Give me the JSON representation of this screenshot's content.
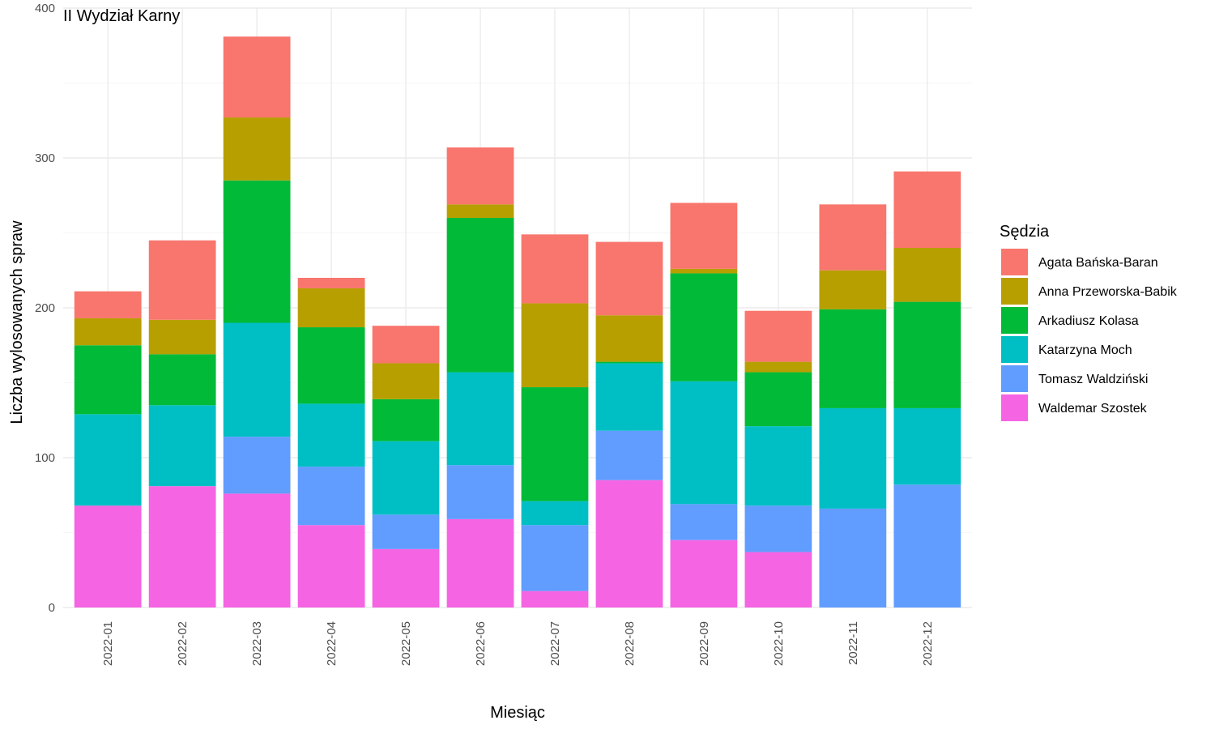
{
  "chart_data": {
    "type": "bar",
    "stacked": true,
    "title": "II Wydział Karny",
    "xlabel": "Miesiąc",
    "ylabel": "Liczba wylosowanych spraw",
    "ylim": [
      0,
      400
    ],
    "yticks": [
      "0",
      "100",
      "200",
      "300",
      "400"
    ],
    "grid": true,
    "legend": {
      "title": "Sędzia",
      "placement": "right"
    },
    "categories": [
      "2022-01",
      "2022-02",
      "2022-03",
      "2022-04",
      "2022-05",
      "2022-06",
      "2022-07",
      "2022-08",
      "2022-09",
      "2022-10",
      "2022-11",
      "2022-12"
    ],
    "series": [
      {
        "name": "Waldemar Szostek",
        "color": "#F564E3",
        "values": [
          68,
          81,
          76,
          55,
          39,
          59,
          11,
          85,
          45,
          37,
          0,
          0
        ]
      },
      {
        "name": "Tomasz Waldziński",
        "color": "#619CFF",
        "values": [
          0,
          0,
          38,
          39,
          23,
          36,
          44,
          33,
          24,
          31,
          66,
          82
        ]
      },
      {
        "name": "Katarzyna Moch",
        "color": "#00BFC4",
        "values": [
          61,
          54,
          76,
          42,
          49,
          62,
          16,
          45,
          82,
          53,
          67,
          51
        ]
      },
      {
        "name": "Arkadiusz Kolasa",
        "color": "#00BA38",
        "values": [
          46,
          34,
          95,
          51,
          28,
          103,
          76,
          1,
          72,
          36,
          66,
          71
        ]
      },
      {
        "name": "Anna Przeworska-Babik",
        "color": "#B79F00",
        "values": [
          18,
          23,
          42,
          26,
          24,
          9,
          56,
          31,
          3,
          7,
          26,
          36
        ]
      },
      {
        "name": "Agata Bańska-Baran",
        "color": "#F8766D",
        "values": [
          18,
          53,
          54,
          7,
          25,
          38,
          46,
          49,
          44,
          34,
          44,
          51
        ]
      }
    ],
    "legend_order": [
      "Agata Bańska-Baran",
      "Anna Przeworska-Babik",
      "Arkadiusz Kolasa",
      "Katarzyna Moch",
      "Tomasz Waldziński",
      "Waldemar Szostek"
    ]
  }
}
